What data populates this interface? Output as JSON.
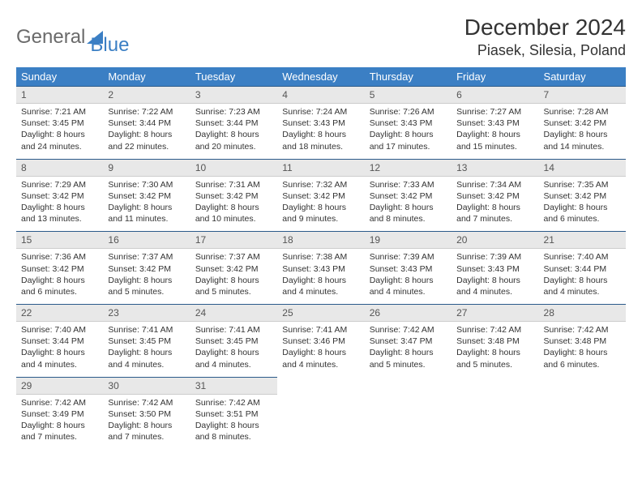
{
  "logo": {
    "text1": "General",
    "text2": "Blue"
  },
  "title": "December 2024",
  "location": "Piasek, Silesia, Poland",
  "colors": {
    "header_bg": "#3b7fc4",
    "header_text": "#ffffff",
    "date_bg": "#e8e8e8",
    "date_border": "#2b5a8a",
    "logo_gray": "#6a6a6a",
    "logo_blue": "#3b7fc4"
  },
  "dayNames": [
    "Sunday",
    "Monday",
    "Tuesday",
    "Wednesday",
    "Thursday",
    "Friday",
    "Saturday"
  ],
  "weeks": [
    [
      {
        "d": "1",
        "sr": "Sunrise: 7:21 AM",
        "ss": "Sunset: 3:45 PM",
        "dl1": "Daylight: 8 hours",
        "dl2": "and 24 minutes."
      },
      {
        "d": "2",
        "sr": "Sunrise: 7:22 AM",
        "ss": "Sunset: 3:44 PM",
        "dl1": "Daylight: 8 hours",
        "dl2": "and 22 minutes."
      },
      {
        "d": "3",
        "sr": "Sunrise: 7:23 AM",
        "ss": "Sunset: 3:44 PM",
        "dl1": "Daylight: 8 hours",
        "dl2": "and 20 minutes."
      },
      {
        "d": "4",
        "sr": "Sunrise: 7:24 AM",
        "ss": "Sunset: 3:43 PM",
        "dl1": "Daylight: 8 hours",
        "dl2": "and 18 minutes."
      },
      {
        "d": "5",
        "sr": "Sunrise: 7:26 AM",
        "ss": "Sunset: 3:43 PM",
        "dl1": "Daylight: 8 hours",
        "dl2": "and 17 minutes."
      },
      {
        "d": "6",
        "sr": "Sunrise: 7:27 AM",
        "ss": "Sunset: 3:43 PM",
        "dl1": "Daylight: 8 hours",
        "dl2": "and 15 minutes."
      },
      {
        "d": "7",
        "sr": "Sunrise: 7:28 AM",
        "ss": "Sunset: 3:42 PM",
        "dl1": "Daylight: 8 hours",
        "dl2": "and 14 minutes."
      }
    ],
    [
      {
        "d": "8",
        "sr": "Sunrise: 7:29 AM",
        "ss": "Sunset: 3:42 PM",
        "dl1": "Daylight: 8 hours",
        "dl2": "and 13 minutes."
      },
      {
        "d": "9",
        "sr": "Sunrise: 7:30 AM",
        "ss": "Sunset: 3:42 PM",
        "dl1": "Daylight: 8 hours",
        "dl2": "and 11 minutes."
      },
      {
        "d": "10",
        "sr": "Sunrise: 7:31 AM",
        "ss": "Sunset: 3:42 PM",
        "dl1": "Daylight: 8 hours",
        "dl2": "and 10 minutes."
      },
      {
        "d": "11",
        "sr": "Sunrise: 7:32 AM",
        "ss": "Sunset: 3:42 PM",
        "dl1": "Daylight: 8 hours",
        "dl2": "and 9 minutes."
      },
      {
        "d": "12",
        "sr": "Sunrise: 7:33 AM",
        "ss": "Sunset: 3:42 PM",
        "dl1": "Daylight: 8 hours",
        "dl2": "and 8 minutes."
      },
      {
        "d": "13",
        "sr": "Sunrise: 7:34 AM",
        "ss": "Sunset: 3:42 PM",
        "dl1": "Daylight: 8 hours",
        "dl2": "and 7 minutes."
      },
      {
        "d": "14",
        "sr": "Sunrise: 7:35 AM",
        "ss": "Sunset: 3:42 PM",
        "dl1": "Daylight: 8 hours",
        "dl2": "and 6 minutes."
      }
    ],
    [
      {
        "d": "15",
        "sr": "Sunrise: 7:36 AM",
        "ss": "Sunset: 3:42 PM",
        "dl1": "Daylight: 8 hours",
        "dl2": "and 6 minutes."
      },
      {
        "d": "16",
        "sr": "Sunrise: 7:37 AM",
        "ss": "Sunset: 3:42 PM",
        "dl1": "Daylight: 8 hours",
        "dl2": "and 5 minutes."
      },
      {
        "d": "17",
        "sr": "Sunrise: 7:37 AM",
        "ss": "Sunset: 3:42 PM",
        "dl1": "Daylight: 8 hours",
        "dl2": "and 5 minutes."
      },
      {
        "d": "18",
        "sr": "Sunrise: 7:38 AM",
        "ss": "Sunset: 3:43 PM",
        "dl1": "Daylight: 8 hours",
        "dl2": "and 4 minutes."
      },
      {
        "d": "19",
        "sr": "Sunrise: 7:39 AM",
        "ss": "Sunset: 3:43 PM",
        "dl1": "Daylight: 8 hours",
        "dl2": "and 4 minutes."
      },
      {
        "d": "20",
        "sr": "Sunrise: 7:39 AM",
        "ss": "Sunset: 3:43 PM",
        "dl1": "Daylight: 8 hours",
        "dl2": "and 4 minutes."
      },
      {
        "d": "21",
        "sr": "Sunrise: 7:40 AM",
        "ss": "Sunset: 3:44 PM",
        "dl1": "Daylight: 8 hours",
        "dl2": "and 4 minutes."
      }
    ],
    [
      {
        "d": "22",
        "sr": "Sunrise: 7:40 AM",
        "ss": "Sunset: 3:44 PM",
        "dl1": "Daylight: 8 hours",
        "dl2": "and 4 minutes."
      },
      {
        "d": "23",
        "sr": "Sunrise: 7:41 AM",
        "ss": "Sunset: 3:45 PM",
        "dl1": "Daylight: 8 hours",
        "dl2": "and 4 minutes."
      },
      {
        "d": "24",
        "sr": "Sunrise: 7:41 AM",
        "ss": "Sunset: 3:45 PM",
        "dl1": "Daylight: 8 hours",
        "dl2": "and 4 minutes."
      },
      {
        "d": "25",
        "sr": "Sunrise: 7:41 AM",
        "ss": "Sunset: 3:46 PM",
        "dl1": "Daylight: 8 hours",
        "dl2": "and 4 minutes."
      },
      {
        "d": "26",
        "sr": "Sunrise: 7:42 AM",
        "ss": "Sunset: 3:47 PM",
        "dl1": "Daylight: 8 hours",
        "dl2": "and 5 minutes."
      },
      {
        "d": "27",
        "sr": "Sunrise: 7:42 AM",
        "ss": "Sunset: 3:48 PM",
        "dl1": "Daylight: 8 hours",
        "dl2": "and 5 minutes."
      },
      {
        "d": "28",
        "sr": "Sunrise: 7:42 AM",
        "ss": "Sunset: 3:48 PM",
        "dl1": "Daylight: 8 hours",
        "dl2": "and 6 minutes."
      }
    ],
    [
      {
        "d": "29",
        "sr": "Sunrise: 7:42 AM",
        "ss": "Sunset: 3:49 PM",
        "dl1": "Daylight: 8 hours",
        "dl2": "and 7 minutes."
      },
      {
        "d": "30",
        "sr": "Sunrise: 7:42 AM",
        "ss": "Sunset: 3:50 PM",
        "dl1": "Daylight: 8 hours",
        "dl2": "and 7 minutes."
      },
      {
        "d": "31",
        "sr": "Sunrise: 7:42 AM",
        "ss": "Sunset: 3:51 PM",
        "dl1": "Daylight: 8 hours",
        "dl2": "and 8 minutes."
      },
      null,
      null,
      null,
      null
    ]
  ]
}
